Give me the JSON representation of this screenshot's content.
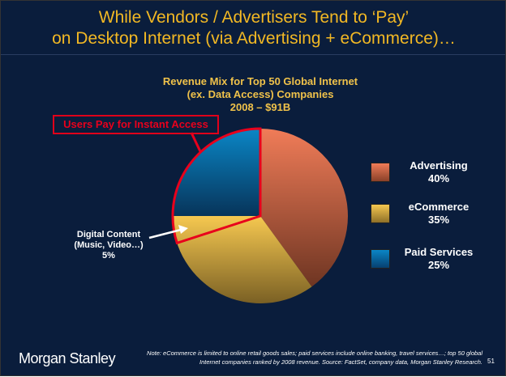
{
  "title": {
    "line1": "While Vendors / Advertisers Tend to ‘Pay’",
    "line2": "on Desktop Internet (via Advertising + eCommerce)…"
  },
  "chart_data": {
    "type": "pie",
    "title": [
      "Revenue Mix for Top 50 Global Internet",
      "(ex. Data Access) Companies",
      "2008 – $91B"
    ],
    "slices": [
      {
        "name": "Advertising",
        "value": 40,
        "label": "40%",
        "color": "#e0744a"
      },
      {
        "name": "eCommerce",
        "value": 35,
        "label": "35%",
        "color": "#e9b94a"
      },
      {
        "name": "Paid Services",
        "value": 25,
        "label": "25%",
        "color": "#0a6aa0"
      }
    ],
    "sub_slice": {
      "name": "Digital Content",
      "line1": "Digital Content",
      "line2": "(Music, Video…)",
      "label": "5%",
      "value": 5
    },
    "callout": "Users Pay for Instant Access",
    "legend_position": "right"
  },
  "footer": {
    "logo": "Morgan Stanley",
    "note1": "Note: eCommerce is limited to online retail goods sales; paid services include online banking, travel services…; top 50 global",
    "note2": "Internet companies ranked by 2008 revenue. Source: FactSet, company data, Morgan Stanley Research.",
    "page": "51"
  }
}
